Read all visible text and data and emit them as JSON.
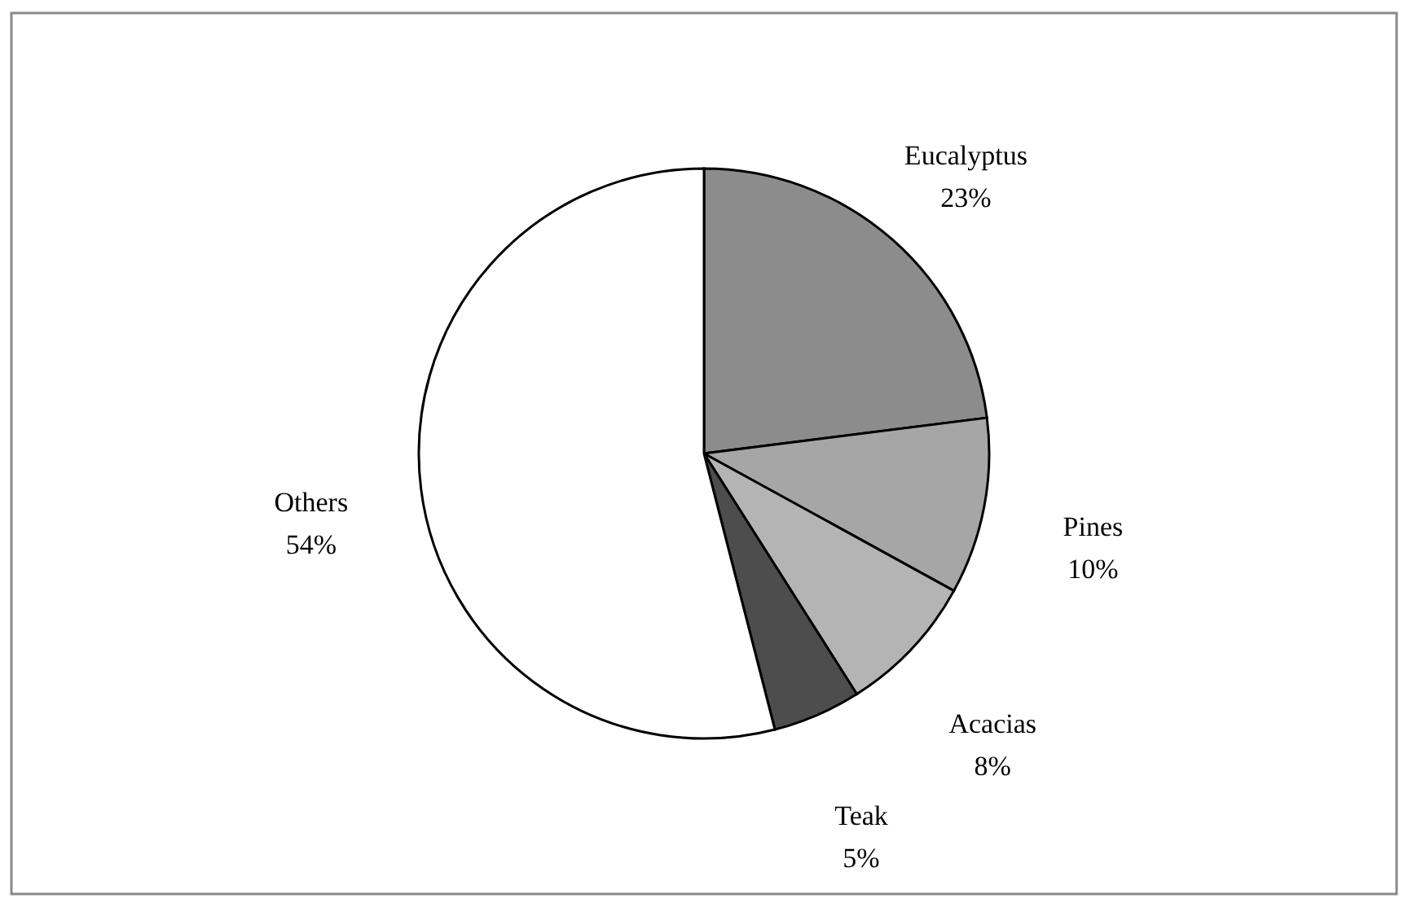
{
  "chart_data": {
    "type": "pie",
    "categories": [
      "Eucalyptus",
      "Pines",
      "Acacias",
      "Teak",
      "Others"
    ],
    "values": [
      23,
      10,
      8,
      5,
      54
    ],
    "colors": [
      "#8c8c8c",
      "#a6a6a6",
      "#b4b4b4",
      "#4d4d4d",
      "#ffffff"
    ],
    "value_labels": [
      "23%",
      "10%",
      "8%",
      "5%",
      "54%"
    ]
  }
}
